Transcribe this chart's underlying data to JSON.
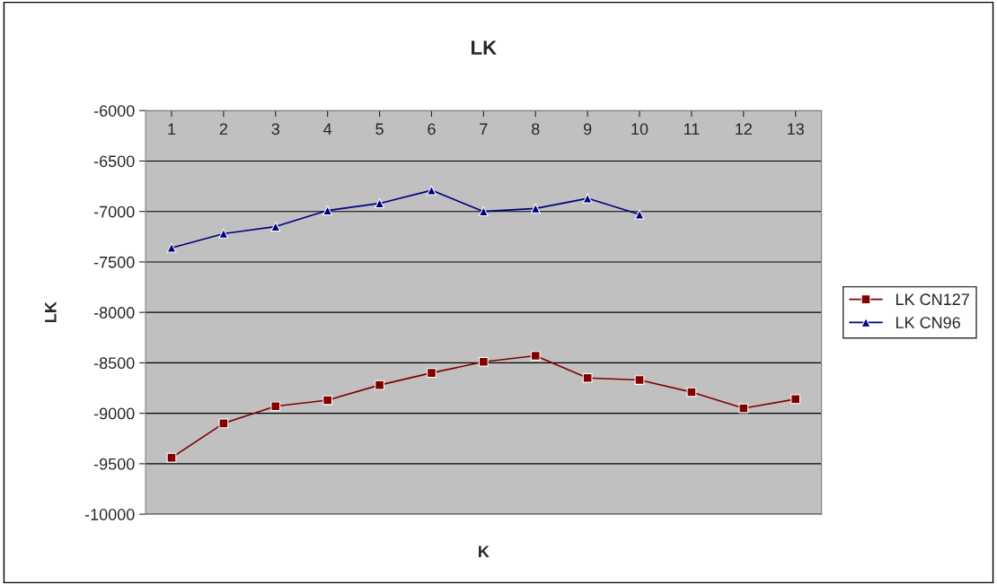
{
  "chart_data": {
    "type": "line",
    "title": "LK",
    "xlabel": "K",
    "ylabel": "LK",
    "categories": [
      "1",
      "2",
      "3",
      "4",
      "5",
      "6",
      "7",
      "8",
      "9",
      "10",
      "11",
      "12",
      "13"
    ],
    "series": [
      {
        "name": "LK CN127",
        "color": "#800000",
        "marker": "square",
        "values": [
          -9440,
          -9100,
          -8930,
          -8870,
          -8720,
          -8600,
          -8490,
          -8430,
          -8650,
          -8670,
          -8790,
          -8950,
          -8860
        ]
      },
      {
        "name": "LK CN96",
        "color": "#000080",
        "marker": "triangle",
        "values": [
          -7360,
          -7220,
          -7150,
          -6990,
          -6920,
          -6790,
          -7000,
          -6970,
          -6870,
          -7030,
          null,
          null,
          null
        ]
      }
    ],
    "ylim": [
      -10000,
      -6000
    ],
    "yticks": [
      -10000,
      -9500,
      -9000,
      -8500,
      -8000,
      -7500,
      -7000,
      -6500,
      -6000
    ],
    "grid": "y",
    "legend": "right",
    "line_style": "solid"
  }
}
